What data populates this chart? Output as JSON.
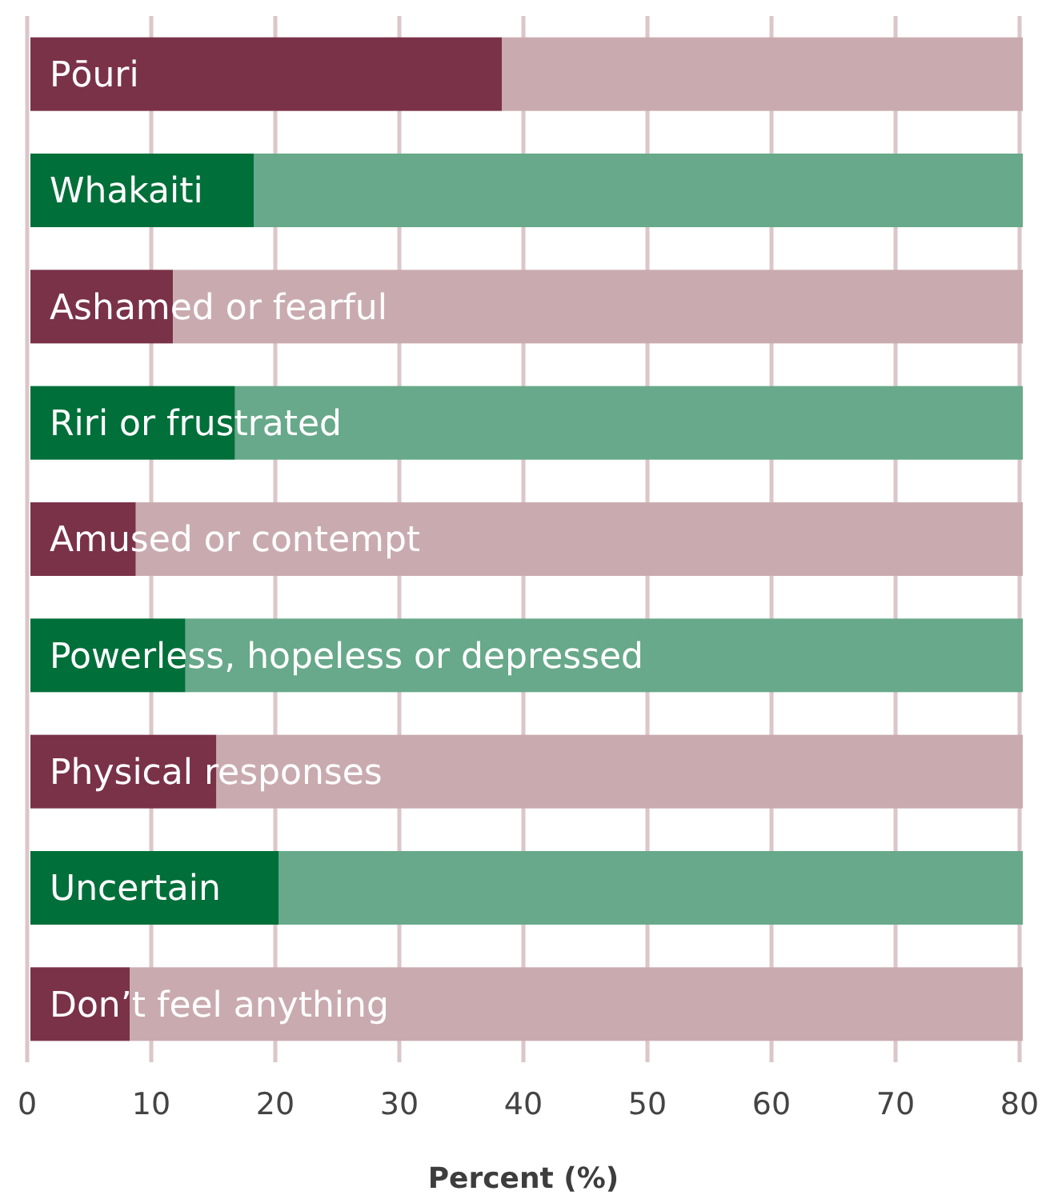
{
  "chart_data": {
    "type": "bar",
    "orientation": "horizontal",
    "stacked": true,
    "categories": [
      "Pōuri",
      "Whakaiti",
      "Ashamed or fearful",
      "Riri or frustrated",
      "Amused or contempt",
      "Powerless, hopeless or depressed",
      "Physical responses",
      "Uncertain",
      "Don’t feel anything"
    ],
    "series": [
      {
        "colors": [
          "#7a3249",
          "#006f39",
          "#7a3249",
          "#006f39",
          "#7a3249",
          "#006f39",
          "#7a3249",
          "#006f39",
          "#7a3249"
        ],
        "values": [
          38,
          18,
          11.5,
          16.5,
          8.5,
          12.5,
          15,
          20,
          8
        ]
      },
      {
        "colors": [
          "#c9abaf",
          "#67a98a",
          "#c9abaf",
          "#67a98a",
          "#c9abaf",
          "#67a98a",
          "#c9abaf",
          "#67a98a",
          "#c9abaf"
        ],
        "values": [
          42,
          62,
          68.5,
          63.5,
          71.5,
          67.5,
          65,
          60,
          72
        ]
      }
    ],
    "xlabel": "Percent (%)",
    "xlim": [
      0,
      80
    ],
    "xticks": [
      0,
      10,
      20,
      30,
      40,
      50,
      60,
      70,
      80
    ],
    "grid": "x"
  }
}
